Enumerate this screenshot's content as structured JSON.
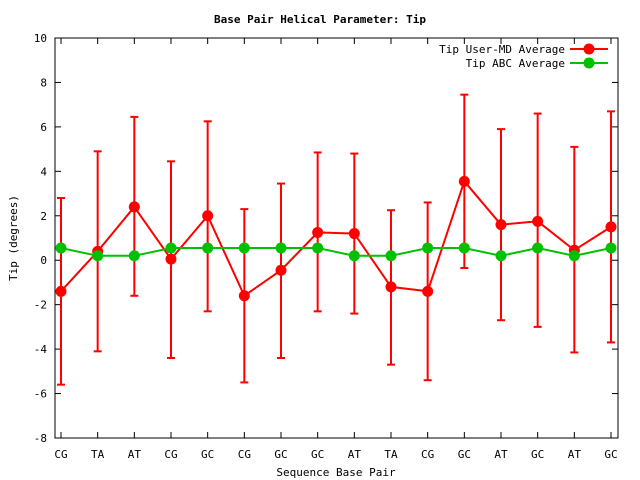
{
  "chart_data": {
    "type": "line",
    "title": "Base Pair Helical Parameter: Tip",
    "xlabel": "Sequence Base Pair",
    "ylabel": "Tip (degrees)",
    "categories": [
      "CG",
      "TA",
      "AT",
      "CG",
      "GC",
      "CG",
      "GC",
      "GC",
      "AT",
      "TA",
      "CG",
      "GC",
      "AT",
      "GC",
      "AT",
      "GC"
    ],
    "ylim": [
      -8,
      10
    ],
    "yticks": [
      -8,
      -6,
      -4,
      -2,
      0,
      2,
      4,
      6,
      8,
      10
    ],
    "grid": false,
    "legend_position": "top-right",
    "series": [
      {
        "name": "Tip User-MD Average",
        "color": "#ff0000",
        "values": [
          -1.4,
          0.4,
          2.4,
          0.05,
          2.0,
          -1.6,
          -0.45,
          1.25,
          1.2,
          -1.2,
          -1.4,
          3.55,
          1.6,
          1.75,
          0.45,
          1.5
        ],
        "error_low": [
          -5.6,
          -4.1,
          -1.6,
          -4.4,
          -2.3,
          -5.5,
          -4.4,
          -2.3,
          -2.4,
          -4.7,
          -5.4,
          -0.35,
          -2.7,
          -3.0,
          -4.15,
          -3.7
        ],
        "error_high": [
          2.8,
          4.9,
          6.45,
          4.45,
          6.25,
          2.3,
          3.45,
          4.85,
          4.8,
          2.25,
          2.6,
          7.45,
          5.9,
          6.6,
          5.1,
          6.7
        ]
      },
      {
        "name": "Tip ABC Average",
        "color": "#00c000",
        "values": [
          0.55,
          0.2,
          0.2,
          0.55,
          0.55,
          0.55,
          0.55,
          0.55,
          0.2,
          0.2,
          0.55,
          0.55,
          0.2,
          0.55,
          0.2,
          0.55
        ]
      }
    ]
  }
}
